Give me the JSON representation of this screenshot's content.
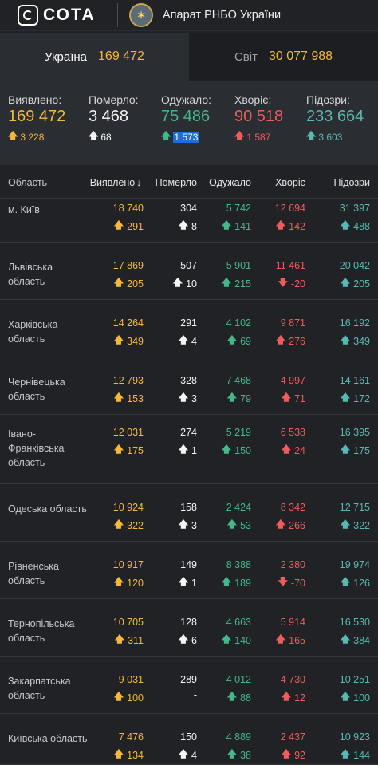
{
  "header": {
    "logo_text": "СОТА",
    "org_name": "Апарат РНБО України"
  },
  "switcher": {
    "ukraine": {
      "label": "Україна",
      "value": "169 472"
    },
    "world": {
      "label": "Світ",
      "value": "30 077 988"
    }
  },
  "stats": [
    {
      "label": "Виявлено:",
      "value": "169 472",
      "delta": "3 228",
      "color": "#f5b83b",
      "dir": "up"
    },
    {
      "label": "Померло:",
      "value": "3 468",
      "delta": "68",
      "color": "#f5f5f5",
      "dir": "up"
    },
    {
      "label": "Одужало:",
      "value": "75 486",
      "delta": "1 573",
      "color": "#43b88a",
      "dir": "up"
    },
    {
      "label": "Хворіє:",
      "value": "90 518",
      "delta": "1 587",
      "color": "#f05b5b",
      "dir": "up"
    },
    {
      "label": "Підозри:",
      "value": "233 664",
      "delta": "3 603",
      "color": "#58b9b2",
      "dir": "up"
    }
  ],
  "table": {
    "headers": [
      "Область",
      "Виявлено",
      "Померло",
      "Одужало",
      "Хворіє",
      "Підозри"
    ],
    "sort_icon": "↓",
    "rows": [
      {
        "region": "м. Київ",
        "detected": "18 740",
        "detected_d": "291",
        "died": "304",
        "died_d": "8",
        "recovered": "5 742",
        "recovered_d": "141",
        "sick": "12 694",
        "sick_d": "142",
        "sick_dir": "up",
        "suspect": "31 397",
        "suspect_d": "488"
      },
      {
        "region": "Львівська область",
        "detected": "17 869",
        "detected_d": "205",
        "died": "507",
        "died_d": "10",
        "recovered": "5 901",
        "recovered_d": "215",
        "sick": "11 461",
        "sick_d": "-20",
        "sick_dir": "down",
        "suspect": "20 042",
        "suspect_d": "205"
      },
      {
        "region": "Харківська область",
        "detected": "14 264",
        "detected_d": "349",
        "died": "291",
        "died_d": "4",
        "recovered": "4 102",
        "recovered_d": "69",
        "sick": "9 871",
        "sick_d": "276",
        "sick_dir": "up",
        "suspect": "16 192",
        "suspect_d": "349"
      },
      {
        "region": "Чернівецька область",
        "detected": "12 793",
        "detected_d": "153",
        "died": "328",
        "died_d": "3",
        "recovered": "7 468",
        "recovered_d": "79",
        "sick": "4 997",
        "sick_d": "71",
        "sick_dir": "up",
        "suspect": "14 161",
        "suspect_d": "172"
      },
      {
        "region": "Івано-Франківська область",
        "detected": "12 031",
        "detected_d": "175",
        "died": "274",
        "died_d": "1",
        "recovered": "5 219",
        "recovered_d": "150",
        "sick": "6 538",
        "sick_d": "24",
        "sick_dir": "up",
        "suspect": "16 395",
        "suspect_d": "175"
      },
      {
        "region": "Одеська область",
        "detected": "10 924",
        "detected_d": "322",
        "died": "158",
        "died_d": "3",
        "recovered": "2 424",
        "recovered_d": "53",
        "sick": "8 342",
        "sick_d": "266",
        "sick_dir": "up",
        "suspect": "12 715",
        "suspect_d": "322"
      },
      {
        "region": "Рівненська область",
        "detected": "10 917",
        "detected_d": "120",
        "died": "149",
        "died_d": "1",
        "recovered": "8 388",
        "recovered_d": "189",
        "sick": "2 380",
        "sick_d": "-70",
        "sick_dir": "down",
        "suspect": "19 974",
        "suspect_d": "126"
      },
      {
        "region": "Тернопільська область",
        "detected": "10 705",
        "detected_d": "311",
        "died": "128",
        "died_d": "6",
        "recovered": "4 663",
        "recovered_d": "140",
        "sick": "5 914",
        "sick_d": "165",
        "sick_dir": "up",
        "suspect": "16 530",
        "suspect_d": "384"
      },
      {
        "region": "Закарпатська область",
        "detected": "9 031",
        "detected_d": "100",
        "died": "289",
        "died_d": "-",
        "recovered": "4 012",
        "recovered_d": "88",
        "sick": "4 730",
        "sick_d": "12",
        "sick_dir": "up",
        "suspect": "10 251",
        "suspect_d": "100"
      },
      {
        "region": "Київська область",
        "detected": "7 476",
        "detected_d": "134",
        "died": "150",
        "died_d": "4",
        "recovered": "4 889",
        "recovered_d": "38",
        "sick": "2 437",
        "sick_d": "92",
        "sick_dir": "up",
        "suspect": "10 923",
        "suspect_d": "144"
      }
    ]
  }
}
